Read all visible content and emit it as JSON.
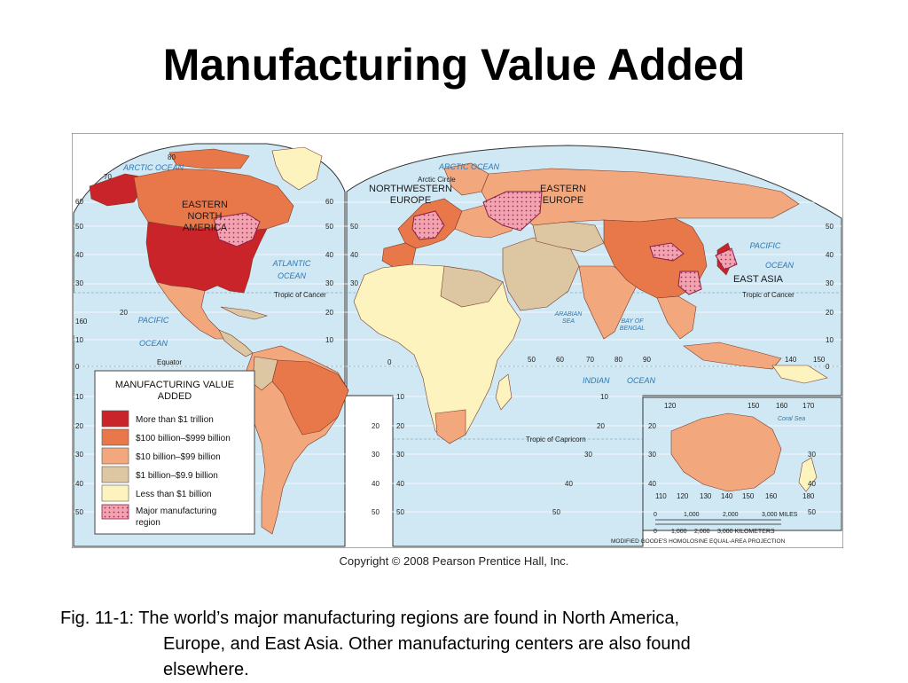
{
  "slide": {
    "title": "Manufacturing Value Added",
    "copyright": "Copyright © 2008 Pearson Prentice Hall, Inc.",
    "caption_line1": "Fig. 11-1: The world’s major manufacturing regions are found in North America,",
    "caption_line2": "Europe, and East Asia.  Other  manufacturing centers are also found",
    "caption_line3": "elsewhere."
  },
  "map": {
    "colors": {
      "ocean": "#cfe8f3",
      "gt_1t": "#c8242a",
      "b100_999": "#e8774a",
      "b10_99": "#f3a77d",
      "b1_9_9": "#ddc7a3",
      "lt_1b": "#fdf3bf",
      "region": "#f7b9c2"
    },
    "region_labels": {
      "eastern_north_america": [
        "EASTERN",
        "NORTH",
        "AMERICA"
      ],
      "northwestern_europe": [
        "NORTHWESTERN",
        "EUROPE"
      ],
      "eastern_europe": [
        "EASTERN",
        "EUROPE"
      ],
      "east_asia": "EAST ASIA"
    },
    "ocean_labels": {
      "arctic_left": "ARCTIC OCEAN",
      "arctic_right": "ARCTIC OCEAN",
      "atlantic": [
        "ATLANTIC",
        "OCEAN"
      ],
      "pacific_left": [
        "PACIFIC",
        "OCEAN"
      ],
      "pacific_right": [
        "PACIFIC",
        "OCEAN"
      ],
      "indian": "INDIAN",
      "indian2": "OCEAN",
      "arabian": [
        "ARABIAN",
        "SEA"
      ],
      "bengal": [
        "BAY OF",
        "BENGAL"
      ],
      "coral": "Coral Sea"
    },
    "lines": {
      "arctic_circle": "Arctic Circle",
      "tropic_cancer_left": "Tropic of Cancer",
      "tropic_cancer_right": "Tropic of Cancer",
      "equator": "Equator",
      "tropic_capricorn": "Tropic of Capricorn"
    },
    "lat_ticks": {
      "left_edge": [
        "60",
        "50",
        "40",
        "30",
        "160",
        "10",
        "0",
        "10",
        "20",
        "30",
        "40",
        "50"
      ],
      "na_right": [
        "60",
        "50",
        "40",
        "30",
        "20",
        "10"
      ],
      "sa_right": [
        "20",
        "30",
        "40",
        "50"
      ],
      "eu_left": [
        "50",
        "40",
        "30"
      ],
      "af_left": [
        "10",
        "20",
        "30",
        "40",
        "50"
      ],
      "af_right": [
        "10",
        "20",
        "30",
        "40",
        "50"
      ],
      "asia_right": [
        "50",
        "40",
        "30",
        "20",
        "10",
        "0"
      ],
      "aus_left": [
        "20",
        "30",
        "40"
      ],
      "aus_right": [
        "30",
        "40",
        "50"
      ],
      "top_left": [
        "80",
        "70"
      ],
      "equator_zero": "0"
    },
    "lon_ticks": {
      "asia": [
        "50",
        "60",
        "70",
        "80",
        "90",
        "140",
        "150"
      ],
      "aus_top": [
        "120",
        "150",
        "160",
        "170"
      ],
      "aus_bottom": [
        "110",
        "120",
        "130",
        "140",
        "150",
        "160",
        "180"
      ],
      "pacific_20": "20"
    },
    "legend": {
      "title_line1": "MANUFACTURING VALUE",
      "title_line2": "ADDED",
      "items": [
        {
          "label": "More than $1 trillion",
          "color": "#c8242a"
        },
        {
          "label": "$100 billion–$999 billion",
          "color": "#e8774a"
        },
        {
          "label": "$10 billion–$99 billion",
          "color": "#f3a77d"
        },
        {
          "label": "$1 billion–$9.9 billion",
          "color": "#ddc7a3"
        },
        {
          "label": "Less than $1 billion",
          "color": "#fdf3bf"
        }
      ],
      "major_line1": "Major manufacturing",
      "major_line2": "region"
    },
    "scale": {
      "miles": [
        "0",
        "1,000",
        "2,000",
        "3,000 MILES"
      ],
      "km": [
        "0",
        "1,000",
        "2,000",
        "3,000 KILOMETERS"
      ],
      "projection": "MODIFIED GOODE'S HOMOLOSINE EQUAL-AREA PROJECTION"
    }
  }
}
